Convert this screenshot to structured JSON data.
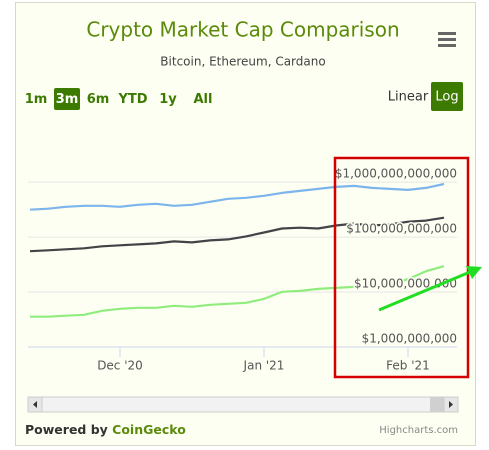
{
  "chart_data": {
    "type": "line",
    "title": "Crypto Market Cap Comparison",
    "subtitle": "Bitcoin, Ethereum, Cardano",
    "range_buttons": [
      "1m",
      "3m",
      "6m",
      "YTD",
      "1y",
      "All"
    ],
    "selected_range": 1,
    "scale_buttons": [
      "Linear",
      "Log"
    ],
    "log_scale": true,
    "grid": true,
    "categories": [
      null,
      null,
      null,
      null,
      null,
      "Dec '20",
      null,
      null,
      null,
      null,
      null,
      null,
      null,
      "Jan '21",
      null,
      null,
      null,
      null,
      null,
      null,
      null,
      "Feb '21",
      null,
      null
    ],
    "series": [
      {
        "color": "#7cb5ec",
        "values": [
          314000000000,
          328000000000,
          356000000000,
          371000000000,
          371000000000,
          356000000000,
          386000000000,
          403000000000,
          371000000000,
          386000000000,
          438000000000,
          497000000000,
          518000000000,
          563000000000,
          637000000000,
          692000000000,
          752000000000,
          818000000000,
          851000000000,
          784000000000,
          752000000000,
          721000000000,
          784000000000,
          925000000000
        ]
      },
      {
        "color": "#434348",
        "values": [
          55200000000,
          57400000000,
          59900000000,
          62400000000,
          67800000000,
          70700000000,
          73600000000,
          76700000000,
          83400000000,
          79900000000,
          86900000000,
          90600000000,
          103000000000,
          121000000000,
          143000000000,
          148000000000,
          143000000000,
          162000000000,
          176000000000,
          162000000000,
          169000000000,
          190000000000,
          199000000000,
          225000000000
        ]
      },
      {
        "color": "#90ed7d",
        "values": [
          3560000000,
          3560000000,
          3710000000,
          3860000000,
          4560000000,
          4960000000,
          5170000000,
          5170000000,
          5610000000,
          5390000000,
          5850000000,
          6100000000,
          6360000000,
          7500000000,
          10100000000,
          10500000000,
          11400000000,
          11900000000,
          12400000000,
          12900000000,
          13400000000,
          17200000000,
          23900000000,
          29500000000
        ]
      }
    ],
    "ylim": [
      1000000000,
      4000000000000
    ],
    "yticks": [
      {
        "value": 1000000000,
        "label": "$1,000,000,000"
      },
      {
        "value": 10000000000,
        "label": "$10,000,000,000"
      },
      {
        "value": 100000000000,
        "label": "$100,000,000,000"
      },
      {
        "value": 1000000000000,
        "label": "$1,000,000,000,000"
      }
    ],
    "powered_by": "Powered by",
    "powered_by_name": "CoinGecko",
    "credits": "Highcharts.com"
  }
}
